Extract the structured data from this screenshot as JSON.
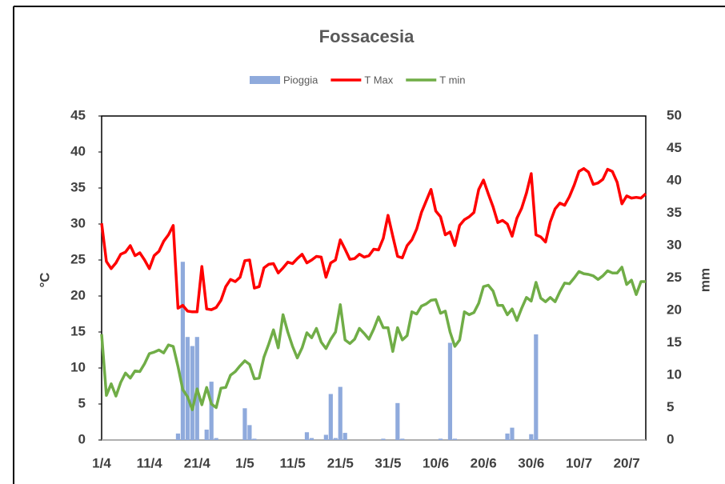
{
  "chart_data": {
    "type": "combo",
    "title": "Fossacesia",
    "y_label": "°C",
    "y2_label": "mm",
    "legend": "top",
    "grid": false,
    "categories": [
      "1/4",
      null,
      null,
      null,
      null,
      null,
      null,
      null,
      null,
      null,
      "11/4",
      null,
      null,
      null,
      null,
      null,
      null,
      null,
      null,
      null,
      "21/4",
      null,
      null,
      null,
      null,
      null,
      null,
      null,
      null,
      null,
      "1/5",
      null,
      null,
      null,
      null,
      null,
      null,
      null,
      null,
      null,
      "11/5",
      null,
      null,
      null,
      null,
      null,
      null,
      null,
      null,
      null,
      "21/5",
      null,
      null,
      null,
      null,
      null,
      null,
      null,
      null,
      null,
      "31/5",
      null,
      null,
      null,
      null,
      null,
      null,
      null,
      null,
      null,
      "10/6",
      null,
      null,
      null,
      null,
      null,
      null,
      null,
      null,
      null,
      "20/6",
      null,
      null,
      null,
      null,
      null,
      null,
      null,
      null,
      null,
      "30/6",
      null,
      null,
      null,
      null,
      null,
      null,
      null,
      null,
      null,
      "10/7",
      null,
      null,
      null,
      null,
      null,
      null,
      null,
      null,
      null,
      "20/7",
      null,
      null,
      null,
      null
    ],
    "ylim": [
      0,
      45
    ],
    "yticks": [
      0,
      5,
      10,
      15,
      20,
      25,
      30,
      35,
      40,
      45
    ],
    "y2lim": [
      0,
      50
    ],
    "y2ticks": [
      0,
      5,
      10,
      15,
      20,
      25,
      30,
      35,
      40,
      45,
      50
    ],
    "series": [
      {
        "name": "Pioggia",
        "type": "bar",
        "axis": "y2",
        "color": "#8faadc",
        "values": [
          0,
          0,
          0,
          0,
          0,
          0,
          0,
          0,
          0,
          0,
          0,
          0,
          0,
          0,
          0,
          0,
          1,
          27.5,
          15.9,
          14.5,
          15.9,
          0,
          1.6,
          9,
          0.3,
          0,
          0,
          0,
          0,
          0,
          4.9,
          2.3,
          0.2,
          0,
          0,
          0,
          0,
          0,
          0,
          0,
          0,
          0,
          0,
          1.2,
          0.3,
          0,
          0,
          0.8,
          7.1,
          0.3,
          8.2,
          1.1,
          0,
          0,
          0,
          0,
          0,
          0,
          0,
          0.2,
          0,
          0,
          5.7,
          0.2,
          0,
          0,
          0,
          0,
          0,
          0,
          0,
          0.2,
          0,
          15,
          0.2,
          0,
          0,
          0,
          0,
          0,
          0,
          0,
          0,
          0,
          0,
          1,
          1.9,
          0,
          0,
          0,
          0.9,
          16.3,
          0,
          0,
          0,
          0,
          0,
          0,
          0,
          0,
          0,
          0,
          0,
          0,
          0,
          0,
          0,
          0,
          0,
          0,
          0,
          0,
          0,
          0,
          0
        ]
      },
      {
        "name": "T Max",
        "type": "line",
        "axis": "y",
        "color": "#ff0000",
        "values": [
          30.1,
          24.8,
          23.8,
          24.6,
          25.8,
          26.1,
          27.0,
          25.6,
          26.0,
          25.0,
          23.8,
          25.6,
          26.2,
          27.6,
          28.5,
          29.8,
          18.3,
          18.7,
          17.9,
          17.8,
          17.8,
          24.1,
          18.2,
          18.1,
          18.4,
          19.4,
          21.3,
          22.3,
          22.0,
          22.6,
          24.9,
          25.0,
          21.1,
          21.3,
          23.9,
          24.4,
          24.5,
          23.2,
          23.9,
          24.7,
          24.5,
          25.2,
          25.8,
          24.6,
          25.0,
          25.5,
          25.4,
          22.6,
          24.6,
          25.0,
          27.8,
          26.5,
          25.1,
          25.2,
          25.8,
          25.4,
          25.6,
          26.5,
          26.4,
          28.0,
          31.2,
          28.3,
          25.5,
          25.3,
          27.0,
          27.8,
          29.3,
          31.6,
          33.2,
          34.8,
          31.8,
          31.0,
          28.5,
          28.9,
          27.0,
          29.8,
          30.6,
          31.0,
          31.6,
          34.8,
          36.1,
          34.2,
          32.4,
          30.2,
          30.5,
          30.0,
          28.3,
          30.8,
          32.2,
          34.3,
          37.0,
          28.5,
          28.2,
          27.5,
          30.3,
          32.1,
          32.9,
          32.6,
          33.8,
          35.4,
          37.3,
          37.7,
          37.2,
          35.5,
          35.7,
          36.2,
          37.6,
          37.3,
          35.8,
          32.8,
          33.9,
          33.6,
          33.7,
          33.6,
          34.2
        ]
      },
      {
        "name": "T min",
        "type": "line",
        "axis": "y",
        "color": "#70ad47",
        "values": [
          14.7,
          6.2,
          7.8,
          6.1,
          8.0,
          9.3,
          8.6,
          9.6,
          9.5,
          10.6,
          12.0,
          12.2,
          12.5,
          12.1,
          13.2,
          13.0,
          10.2,
          7.0,
          6.0,
          4.2,
          7.1,
          4.9,
          7.3,
          5.0,
          4.5,
          7.2,
          7.3,
          9.0,
          9.5,
          10.3,
          11.0,
          10.5,
          8.5,
          8.6,
          11.5,
          13.3,
          15.3,
          12.8,
          17.4,
          15.0,
          13.0,
          11.4,
          12.8,
          14.9,
          14.2,
          15.5,
          13.6,
          12.7,
          14.0,
          15.0,
          18.8,
          13.9,
          13.4,
          14.0,
          15.5,
          14.8,
          14.0,
          15.4,
          17.1,
          15.6,
          15.6,
          12.3,
          15.6,
          13.9,
          14.5,
          17.8,
          17.5,
          18.6,
          18.9,
          19.4,
          19.5,
          17.6,
          17.9,
          15.0,
          13.0,
          13.9,
          17.8,
          17.4,
          17.7,
          19.0,
          21.3,
          21.5,
          20.7,
          18.7,
          18.7,
          17.4,
          18.2,
          16.6,
          18.3,
          19.8,
          19.3,
          21.9,
          19.7,
          19.2,
          19.8,
          19.2,
          20.6,
          21.8,
          21.7,
          22.5,
          23.4,
          23.1,
          23.0,
          22.8,
          22.3,
          22.8,
          23.5,
          23.2,
          23.2,
          24.0,
          21.6,
          22.2,
          20.2,
          22.0,
          22.0
        ]
      }
    ]
  }
}
